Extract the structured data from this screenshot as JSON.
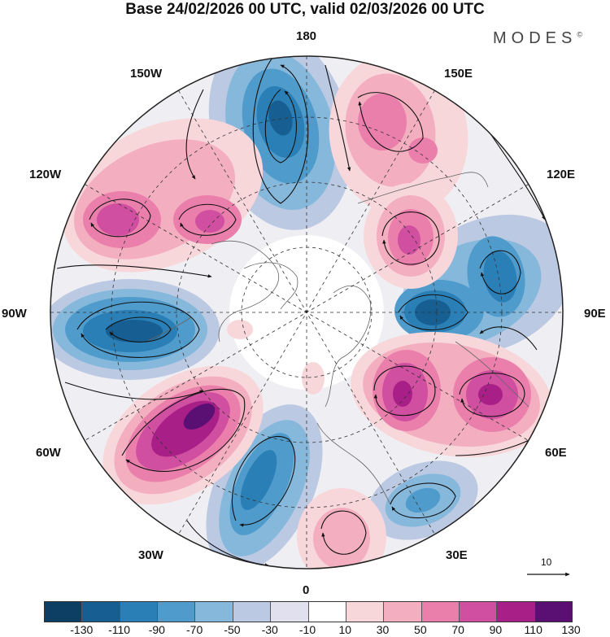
{
  "title": "Base 24/02/2026 00 UTC, valid 02/03/2026 00 UTC",
  "brand": {
    "name": "MODES",
    "mark": "©"
  },
  "longitude_labels": {
    "n180": "180",
    "e150": "150E",
    "e120": "120E",
    "e90": "90E",
    "e60": "60E",
    "e30": "30E",
    "s0": "0",
    "w30": "30W",
    "w60": "60W",
    "w90": "90W",
    "w120": "120W",
    "w150": "150W"
  },
  "reference_vector": {
    "value": "10"
  },
  "colorbar": {
    "colors": [
      "#0c3f63",
      "#175f92",
      "#2a7fb6",
      "#4f9ccc",
      "#86b8dc",
      "#bcc9e3",
      "#e1e0ef",
      "#ffffff",
      "#f8d7db",
      "#f3afc0",
      "#eb7fac",
      "#d04fa0",
      "#a81f88",
      "#5a0f73"
    ],
    "tick_labels": [
      "-130",
      "-110",
      "-90",
      "-70",
      "-50",
      "-30",
      "-10",
      "10",
      "30",
      "50",
      "70",
      "90",
      "110",
      "130"
    ]
  },
  "anomaly_centers": [
    {
      "name": "north-low",
      "type": "negative",
      "value": -110
    },
    {
      "name": "east-low",
      "type": "negative",
      "value": -120
    },
    {
      "name": "east-northeast-low",
      "type": "negative",
      "value": -95
    },
    {
      "name": "west-low",
      "type": "negative",
      "value": -115
    },
    {
      "name": "southwest-low",
      "type": "negative",
      "value": -85
    },
    {
      "name": "south-southeast-low",
      "type": "negative",
      "value": -60
    },
    {
      "name": "northwest-high",
      "type": "positive",
      "value": 85
    },
    {
      "name": "northwest-high-2",
      "type": "positive",
      "value": 75
    },
    {
      "name": "northeast-high",
      "type": "positive",
      "value": 55
    },
    {
      "name": "east-northeast-high",
      "type": "positive",
      "value": 70
    },
    {
      "name": "southeast-high",
      "type": "positive",
      "value": 105
    },
    {
      "name": "southeast-high-2",
      "type": "positive",
      "value": 100
    },
    {
      "name": "southwest-high",
      "type": "positive",
      "value": 120
    },
    {
      "name": "south-high",
      "type": "positive",
      "value": 45
    }
  ]
}
